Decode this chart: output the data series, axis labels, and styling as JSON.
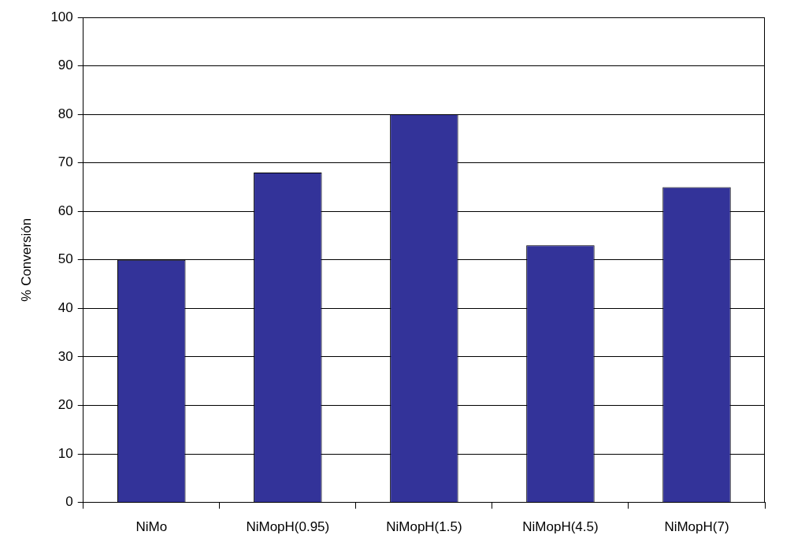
{
  "chart_data": {
    "type": "bar",
    "ylabel": "% Conversión",
    "categories": [
      "NiMo",
      "NiMopH(0.95)",
      "NiMopH(1.5)",
      "NiMopH(4.5)",
      "NiMopH(7)"
    ],
    "values": [
      50,
      68,
      80,
      53,
      65
    ],
    "color": "#333399",
    "ylim": [
      0,
      100
    ],
    "yticks": [
      0,
      10,
      20,
      30,
      40,
      50,
      60,
      70,
      80,
      90,
      100
    ],
    "grid": "y",
    "legend": false
  }
}
